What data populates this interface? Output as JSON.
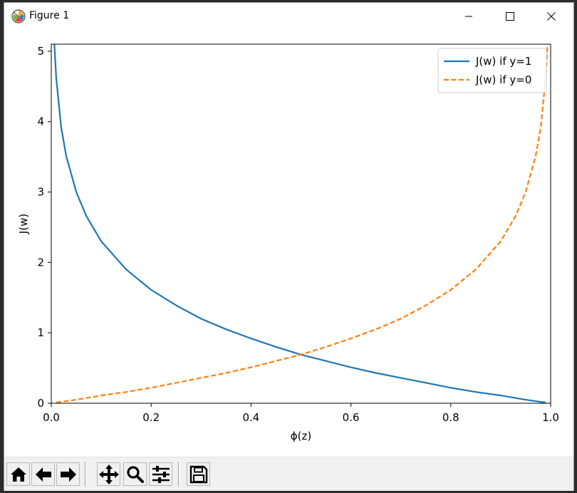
{
  "window": {
    "title": "Figure 1"
  },
  "titlebar_buttons": [
    {
      "name": "minimize-button",
      "icon": "minimize-icon"
    },
    {
      "name": "maximize-button",
      "icon": "maximize-icon"
    },
    {
      "name": "close-button",
      "icon": "close-icon"
    }
  ],
  "toolbar": {
    "buttons": [
      "home-icon",
      "back-arrow-icon",
      "forward-arrow-icon",
      "pan-icon",
      "zoom-icon",
      "configure-subplots-icon",
      "save-icon"
    ]
  },
  "chart_data": {
    "type": "line",
    "title": "",
    "xlabel": "ϕ(z)",
    "ylabel": "J(w)",
    "xlim": [
      0.0,
      1.0
    ],
    "ylim": [
      0,
      5.1
    ],
    "x_ticks": [
      "0.0",
      "0.2",
      "0.4",
      "0.6",
      "0.8",
      "1.0"
    ],
    "y_ticks": [
      "0",
      "1",
      "2",
      "3",
      "4",
      "5"
    ],
    "grid": false,
    "legend_position": "top-right",
    "series": [
      {
        "name": "J(w) if y=1",
        "style": "solid",
        "color": "#1f77b4",
        "x": [
          0.006,
          0.01,
          0.02,
          0.03,
          0.05,
          0.07,
          0.1,
          0.15,
          0.2,
          0.25,
          0.3,
          0.35,
          0.4,
          0.45,
          0.5,
          0.55,
          0.6,
          0.65,
          0.7,
          0.75,
          0.8,
          0.85,
          0.9,
          0.95,
          0.99
        ],
        "y": [
          5.12,
          4.61,
          3.91,
          3.51,
          3.0,
          2.66,
          2.3,
          1.9,
          1.61,
          1.39,
          1.2,
          1.05,
          0.92,
          0.8,
          0.69,
          0.6,
          0.51,
          0.43,
          0.36,
          0.29,
          0.22,
          0.16,
          0.11,
          0.05,
          0.01
        ]
      },
      {
        "name": "J(w) if y=0",
        "style": "dashed",
        "color": "#ff7f0e",
        "x": [
          0.01,
          0.05,
          0.1,
          0.15,
          0.2,
          0.25,
          0.3,
          0.35,
          0.4,
          0.45,
          0.5,
          0.55,
          0.6,
          0.65,
          0.7,
          0.75,
          0.8,
          0.85,
          0.9,
          0.93,
          0.95,
          0.97,
          0.98,
          0.99,
          0.994
        ],
        "y": [
          0.01,
          0.05,
          0.11,
          0.16,
          0.22,
          0.29,
          0.36,
          0.43,
          0.51,
          0.6,
          0.69,
          0.8,
          0.92,
          1.05,
          1.2,
          1.39,
          1.61,
          1.9,
          2.3,
          2.66,
          3.0,
          3.51,
          3.91,
          4.61,
          5.12
        ]
      }
    ]
  }
}
